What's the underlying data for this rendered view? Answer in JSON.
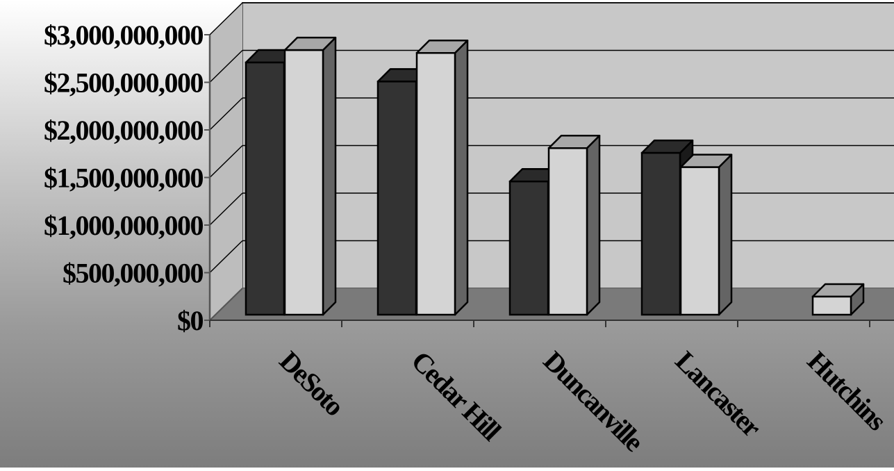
{
  "chart_data": {
    "type": "bar",
    "categories": [
      "DeSoto",
      "Cedar Hill",
      "Duncanville",
      "Lancaster",
      "Hutchins"
    ],
    "series": [
      {
        "values": [
          2650000000,
          2450000000,
          1400000000,
          1700000000,
          null
        ]
      },
      {
        "values": [
          2780000000,
          2750000000,
          1750000000,
          1550000000,
          190000000
        ]
      }
    ],
    "yticks": [
      "$0",
      "$500,000,000",
      "$1,000,000,000",
      "$1,500,000,000",
      "$2,000,000,000",
      "$2,500,000,000",
      "$3,000,000,000"
    ],
    "ylim": [
      0,
      3000000000
    ],
    "title": "",
    "xlabel": "",
    "ylabel": "",
    "grid": true,
    "legend": "none",
    "colors": {
      "series_1": "#333333",
      "series_1_top": "#2a2a2a",
      "series_1_side": "#1a1a1a",
      "series_2": "#d4d4d4",
      "series_2_top": "#a8a8a8",
      "series_2_side": "#646464",
      "back_wall": "#c8c8c8",
      "floor": "#7a7a7a"
    }
  }
}
